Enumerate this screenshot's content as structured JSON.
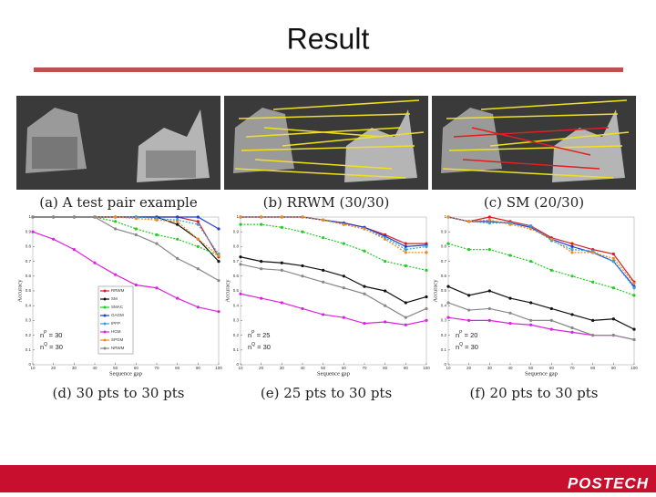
{
  "title": "Result",
  "photos": [
    {
      "caption": "(a)  A  test  pair  example"
    },
    {
      "caption": "(b)  RRWM  (30/30)"
    },
    {
      "caption": "(c)  SM  (20/30)"
    }
  ],
  "chart_data": [
    {
      "type": "line",
      "title": "(d)  30  pts  to  30  pts",
      "x_label": "Sequence gap",
      "y_label": "Accuracy",
      "x": [
        10,
        20,
        30,
        40,
        50,
        60,
        70,
        80,
        90,
        100
      ],
      "xlim": [
        10,
        100
      ],
      "xticks": [
        10,
        20,
        30,
        40,
        50,
        60,
        70,
        80,
        90,
        100
      ],
      "ylim": [
        0,
        1
      ],
      "yticks": [
        0,
        0.1,
        0.2,
        0.3,
        0.4,
        0.5,
        0.6,
        0.7,
        0.8,
        0.9,
        1
      ],
      "legend": "center-right",
      "annotations": [
        [
          "n",
          "P",
          " = 30"
        ],
        [
          "n",
          "Q",
          " = 30"
        ]
      ],
      "series": [
        {
          "name": "RRWM",
          "color": "#d62020",
          "values": [
            1,
            1,
            1,
            1,
            1,
            1,
            1,
            1,
            0.97,
            0.73
          ]
        },
        {
          "name": "SM",
          "color": "#111111",
          "values": [
            1,
            1,
            1,
            1,
            1,
            1,
            1,
            0.95,
            0.85,
            0.7
          ]
        },
        {
          "name": "SMAC",
          "color": "#22cc22",
          "values": [
            1,
            1,
            1,
            1,
            0.97,
            0.92,
            0.88,
            0.85,
            0.8,
            0.74
          ]
        },
        {
          "name": "GAGM",
          "color": "#1f3fd0",
          "values": [
            1,
            1,
            1,
            1,
            1,
            1,
            1,
            1,
            1,
            0.92
          ]
        },
        {
          "name": "IPFP",
          "color": "#33a0e0",
          "values": [
            1,
            1,
            1,
            1,
            1,
            1,
            0.99,
            0.98,
            0.95,
            0.75
          ]
        },
        {
          "name": "HGM",
          "color": "#e020e0",
          "values": [
            0.9,
            0.85,
            0.78,
            0.69,
            0.61,
            0.54,
            0.52,
            0.45,
            0.39,
            0.36
          ]
        },
        {
          "name": "SPGM",
          "color": "#f08a1a",
          "values": [
            1,
            1,
            1,
            1,
            1,
            0.99,
            0.98,
            0.97,
            0.85,
            0.74
          ]
        },
        {
          "name": "NRWM",
          "color": "#888888",
          "values": [
            1,
            1,
            1,
            1,
            0.92,
            0.88,
            0.82,
            0.72,
            0.65,
            0.57
          ]
        }
      ]
    },
    {
      "type": "line",
      "title": "(e)  25  pts  to  30  pts",
      "x_label": "Sequence gap",
      "y_label": "Accuracy",
      "x": [
        10,
        20,
        30,
        40,
        50,
        60,
        70,
        80,
        90,
        100
      ],
      "xlim": [
        10,
        100
      ],
      "xticks": [
        10,
        20,
        30,
        40,
        50,
        60,
        70,
        80,
        90,
        100
      ],
      "ylim": [
        0,
        1
      ],
      "yticks": [
        0,
        0.1,
        0.2,
        0.3,
        0.4,
        0.5,
        0.6,
        0.7,
        0.8,
        0.9,
        1
      ],
      "annotations": [
        [
          "n",
          "P",
          " = 25"
        ],
        [
          "n",
          "Q",
          " = 30"
        ]
      ],
      "series": [
        {
          "color": "#d62020",
          "values": [
            1,
            1,
            1,
            1,
            0.98,
            0.96,
            0.93,
            0.88,
            0.82,
            0.82
          ]
        },
        {
          "color": "#111111",
          "values": [
            0.73,
            0.7,
            0.69,
            0.67,
            0.64,
            0.6,
            0.53,
            0.5,
            0.42,
            0.46
          ]
        },
        {
          "color": "#22cc22",
          "values": [
            0.95,
            0.95,
            0.93,
            0.9,
            0.86,
            0.82,
            0.77,
            0.7,
            0.67,
            0.64
          ]
        },
        {
          "color": "#1f3fd0",
          "values": [
            1,
            1,
            1,
            1,
            0.98,
            0.96,
            0.93,
            0.87,
            0.8,
            0.81
          ]
        },
        {
          "color": "#33a0e0",
          "values": [
            1,
            1,
            1,
            1,
            0.98,
            0.95,
            0.92,
            0.86,
            0.78,
            0.8
          ]
        },
        {
          "color": "#e020e0",
          "values": [
            0.48,
            0.45,
            0.42,
            0.38,
            0.34,
            0.32,
            0.28,
            0.29,
            0.27,
            0.3
          ]
        },
        {
          "color": "#f08a1a",
          "values": [
            1,
            1,
            1,
            1,
            0.98,
            0.95,
            0.92,
            0.85,
            0.76,
            0.76
          ]
        },
        {
          "color": "#888888",
          "values": [
            0.68,
            0.65,
            0.64,
            0.6,
            0.56,
            0.52,
            0.48,
            0.4,
            0.32,
            0.38
          ]
        }
      ]
    },
    {
      "type": "line",
      "title": "(f)  20  pts  to  30  pts",
      "x_label": "Sequence gap",
      "y_label": "Accuracy",
      "x": [
        10,
        20,
        30,
        40,
        50,
        60,
        70,
        80,
        90,
        100
      ],
      "xlim": [
        10,
        100
      ],
      "xticks": [
        10,
        20,
        30,
        40,
        50,
        60,
        70,
        80,
        90,
        100
      ],
      "ylim": [
        0,
        1
      ],
      "yticks": [
        0,
        0.1,
        0.2,
        0.3,
        0.4,
        0.5,
        0.6,
        0.7,
        0.8,
        0.9,
        1
      ],
      "annotations": [
        [
          "n",
          "P",
          " = 20"
        ],
        [
          "n",
          "Q",
          " = 30"
        ]
      ],
      "series": [
        {
          "color": "#d62020",
          "values": [
            1,
            0.97,
            1,
            0.97,
            0.94,
            0.86,
            0.82,
            0.78,
            0.75,
            0.56
          ]
        },
        {
          "color": "#111111",
          "values": [
            0.53,
            0.47,
            0.5,
            0.45,
            0.42,
            0.38,
            0.34,
            0.3,
            0.31,
            0.24
          ]
        },
        {
          "color": "#22cc22",
          "values": [
            0.82,
            0.78,
            0.78,
            0.74,
            0.7,
            0.64,
            0.6,
            0.56,
            0.52,
            0.47
          ]
        },
        {
          "color": "#1f3fd0",
          "values": [
            1,
            0.97,
            0.97,
            0.96,
            0.93,
            0.85,
            0.8,
            0.76,
            0.7,
            0.53
          ]
        },
        {
          "color": "#33a0e0",
          "values": [
            1,
            0.97,
            0.96,
            0.96,
            0.94,
            0.84,
            0.78,
            0.77,
            0.7,
            0.52
          ]
        },
        {
          "color": "#e020e0",
          "values": [
            0.32,
            0.3,
            0.3,
            0.28,
            0.27,
            0.24,
            0.22,
            0.2,
            0.2,
            0.17
          ]
        },
        {
          "color": "#f08a1a",
          "values": [
            1,
            0.97,
            0.98,
            0.95,
            0.92,
            0.85,
            0.76,
            0.76,
            0.72,
            0.55
          ]
        },
        {
          "color": "#888888",
          "values": [
            0.42,
            0.37,
            0.38,
            0.35,
            0.3,
            0.3,
            0.25,
            0.2,
            0.2,
            0.17
          ]
        }
      ]
    }
  ],
  "footer": {
    "logo": "POSTECH"
  }
}
